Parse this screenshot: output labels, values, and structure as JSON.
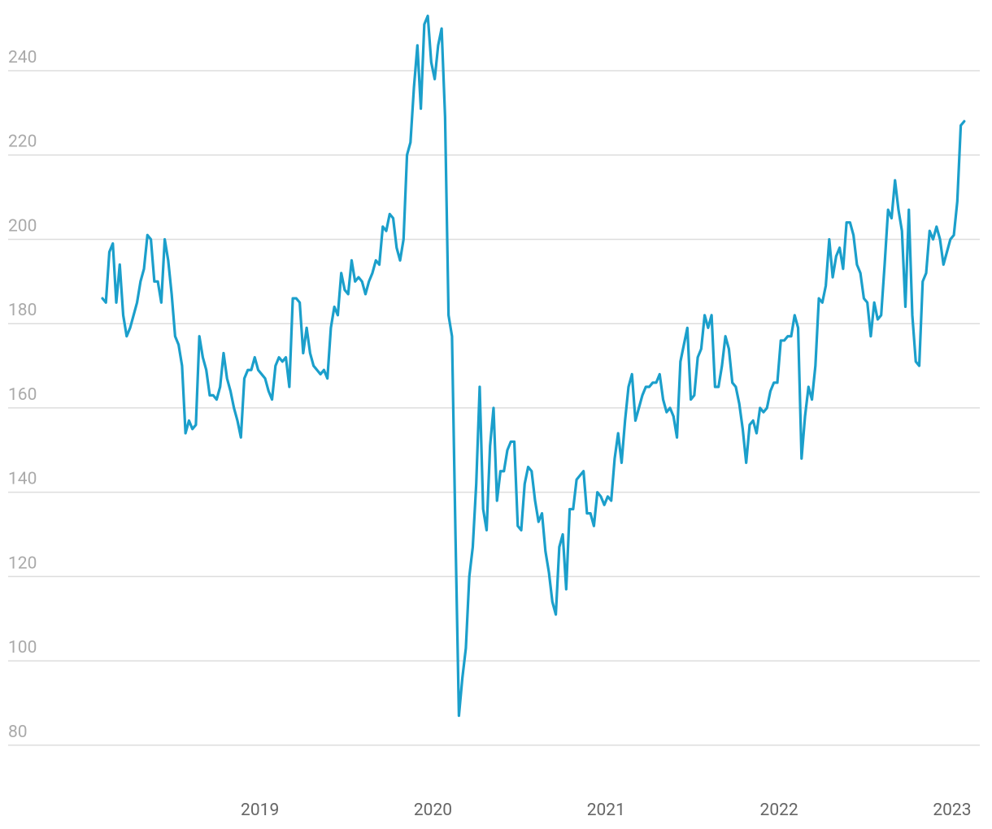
{
  "chart_data": {
    "type": "line",
    "color": "#1b9fcb",
    "grid": true,
    "xlim": [
      2017.545,
      2023.16
    ],
    "xticks": [
      2019,
      2020,
      2021,
      2022,
      2023
    ],
    "ylim": [
      74,
      256
    ],
    "yticks": [
      80,
      100,
      120,
      140,
      160,
      180,
      200,
      220,
      240
    ],
    "x": [
      2018.09,
      2018.11,
      2018.13,
      2018.15,
      2018.17,
      2018.19,
      2018.21,
      2018.23,
      2018.25,
      2018.27,
      2018.29,
      2018.31,
      2018.33,
      2018.35,
      2018.37,
      2018.39,
      2018.41,
      2018.43,
      2018.45,
      2018.47,
      2018.49,
      2018.51,
      2018.53,
      2018.55,
      2018.57,
      2018.59,
      2018.61,
      2018.63,
      2018.65,
      2018.67,
      2018.69,
      2018.71,
      2018.73,
      2018.75,
      2018.77,
      2018.79,
      2018.81,
      2018.83,
      2018.85,
      2018.87,
      2018.89,
      2018.91,
      2018.93,
      2018.95,
      2018.97,
      2018.99,
      2019.01,
      2019.03,
      2019.05,
      2019.07,
      2019.09,
      2019.11,
      2019.13,
      2019.15,
      2019.17,
      2019.19,
      2019.21,
      2019.23,
      2019.25,
      2019.27,
      2019.29,
      2019.31,
      2019.33,
      2019.35,
      2019.37,
      2019.39,
      2019.41,
      2019.43,
      2019.45,
      2019.47,
      2019.49,
      2019.51,
      2019.53,
      2019.55,
      2019.57,
      2019.59,
      2019.61,
      2019.63,
      2019.65,
      2019.67,
      2019.69,
      2019.71,
      2019.73,
      2019.75,
      2019.77,
      2019.79,
      2019.81,
      2019.83,
      2019.85,
      2019.87,
      2019.89,
      2019.91,
      2019.93,
      2019.95,
      2019.97,
      2019.99,
      2020.01,
      2020.03,
      2020.05,
      2020.07,
      2020.09,
      2020.11,
      2020.13,
      2020.15,
      2020.17,
      2020.19,
      2020.21,
      2020.23,
      2020.25,
      2020.27,
      2020.29,
      2020.31,
      2020.33,
      2020.35,
      2020.37,
      2020.39,
      2020.41,
      2020.43,
      2020.45,
      2020.47,
      2020.49,
      2020.51,
      2020.53,
      2020.55,
      2020.57,
      2020.59,
      2020.61,
      2020.63,
      2020.65,
      2020.67,
      2020.69,
      2020.71,
      2020.73,
      2020.75,
      2020.77,
      2020.79,
      2020.81,
      2020.83,
      2020.85,
      2020.87,
      2020.89,
      2020.91,
      2020.93,
      2020.95,
      2020.97,
      2020.99,
      2021.01,
      2021.03,
      2021.05,
      2021.07,
      2021.09,
      2021.11,
      2021.13,
      2021.15,
      2021.17,
      2021.19,
      2021.21,
      2021.23,
      2021.25,
      2021.27,
      2021.29,
      2021.31,
      2021.33,
      2021.35,
      2021.37,
      2021.39,
      2021.41,
      2021.43,
      2021.45,
      2021.47,
      2021.49,
      2021.51,
      2021.53,
      2021.55,
      2021.57,
      2021.59,
      2021.61,
      2021.63,
      2021.65,
      2021.67,
      2021.69,
      2021.71,
      2021.73,
      2021.75,
      2021.77,
      2021.79,
      2021.81,
      2021.83,
      2021.85,
      2021.87,
      2021.89,
      2021.91,
      2021.93,
      2021.95,
      2021.97,
      2021.99,
      2022.01,
      2022.03,
      2022.05,
      2022.07,
      2022.09,
      2022.11,
      2022.13,
      2022.15,
      2022.17,
      2022.19,
      2022.21,
      2022.23,
      2022.25,
      2022.27,
      2022.29,
      2022.31,
      2022.33,
      2022.35,
      2022.37,
      2022.39,
      2022.41,
      2022.43,
      2022.45,
      2022.47,
      2022.49,
      2022.51,
      2022.53,
      2022.55,
      2022.57,
      2022.59,
      2022.61,
      2022.63,
      2022.65,
      2022.67,
      2022.69,
      2022.71,
      2022.73,
      2022.75,
      2022.77,
      2022.79,
      2022.81,
      2022.83,
      2022.85,
      2022.87,
      2022.89,
      2022.91,
      2022.93,
      2022.95,
      2022.97,
      2022.99,
      2023.01,
      2023.03,
      2023.05,
      2023.07
    ],
    "values": [
      186,
      185,
      197,
      199,
      185,
      194,
      182,
      177,
      179,
      182,
      185,
      190,
      193,
      201,
      200,
      190,
      190,
      185,
      200,
      195,
      187,
      177,
      175,
      170,
      154,
      157,
      155,
      156,
      177,
      172,
      169,
      163,
      163,
      162,
      165,
      173,
      167,
      164,
      160,
      157,
      153,
      167,
      169,
      169,
      172,
      169,
      168,
      167,
      164,
      162,
      170,
      172,
      171,
      172,
      165,
      186,
      186,
      185,
      173,
      179,
      173,
      170,
      169,
      168,
      169,
      167,
      179,
      184,
      182,
      192,
      188,
      187,
      195,
      190,
      191,
      190,
      187,
      190,
      192,
      195,
      194,
      203,
      202,
      206,
      205,
      198,
      195,
      200,
      220,
      223,
      236,
      246,
      231,
      251,
      253,
      242,
      238,
      246,
      250,
      229,
      182,
      177,
      130,
      87,
      96,
      103,
      120,
      127,
      142,
      165,
      136,
      131,
      151,
      160,
      138,
      145,
      145,
      150,
      152,
      152,
      132,
      131,
      142,
      146,
      145,
      138,
      133,
      135,
      126,
      121,
      114,
      111,
      127,
      130,
      117,
      136,
      136,
      143,
      144,
      145,
      135,
      135,
      132,
      140,
      139,
      137,
      139,
      138,
      148,
      154,
      147,
      157,
      165,
      168,
      157,
      160,
      163,
      165,
      165,
      166,
      166,
      168,
      162,
      159,
      160,
      158,
      153,
      171,
      175,
      179,
      162,
      163,
      172,
      174,
      182,
      179,
      182,
      165,
      165,
      170,
      177,
      174,
      166,
      165,
      161,
      155,
      147,
      156,
      157,
      154,
      160,
      159,
      160,
      164,
      166,
      166,
      176,
      176,
      177,
      177,
      182,
      179,
      148,
      158,
      165,
      162,
      170,
      186,
      185,
      189,
      200,
      191,
      196,
      198,
      193,
      204,
      204,
      201,
      194,
      192,
      186,
      185,
      177,
      185,
      181,
      182,
      194,
      207,
      205,
      214,
      207,
      202,
      184,
      207,
      182,
      171,
      170,
      190,
      192,
      202,
      200,
      203,
      200,
      194,
      197,
      200,
      201,
      209,
      227,
      228
    ]
  }
}
